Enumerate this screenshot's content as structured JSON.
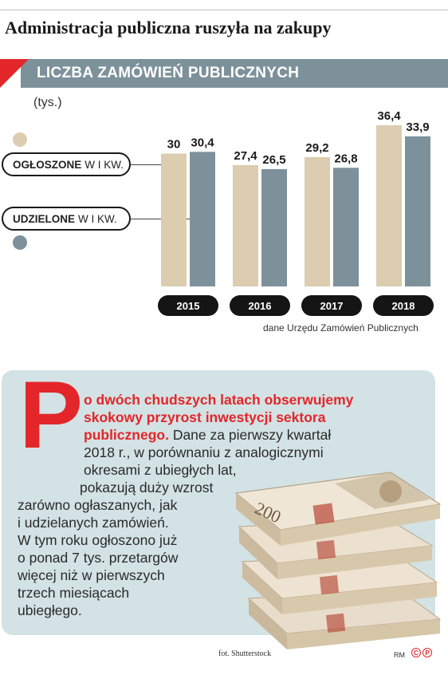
{
  "headline": "Administracja publiczna ruszyła na zakupy",
  "banner": "LICZBA ZAMÓWIEŃ PUBLICZNYCH",
  "units": "(tys.)",
  "legend": {
    "announced_bold": "OGŁOSZONE",
    "announced_rest": "W I KW.",
    "awarded_bold": "UDZIELONE",
    "awarded_rest": "W I KW."
  },
  "colors": {
    "announced": "#dcccb0",
    "awarded": "#7d919b",
    "accent": "#e3262a",
    "card": "#d3e2e4"
  },
  "chart_data": {
    "type": "bar",
    "categories": [
      "2015",
      "2016",
      "2017",
      "2018"
    ],
    "series": [
      {
        "name": "OGŁOSZONE W I KW.",
        "values": [
          30,
          27.4,
          29.2,
          36.4
        ],
        "labels": [
          "30",
          "27,4",
          "29,2",
          "36,4"
        ]
      },
      {
        "name": "UDZIELONE W I KW.",
        "values": [
          30.4,
          26.5,
          26.8,
          33.9
        ],
        "labels": [
          "30,4",
          "26,5",
          "26,8",
          "33,9"
        ]
      }
    ],
    "ylabel": "(tys.)",
    "ylim": [
      0,
      36.4
    ],
    "grid": false
  },
  "source": "dane Urzędu Zamówień Publicznych",
  "article": {
    "dropcap": "P",
    "lead": "o dwóch chudszych latach obserwujemy skokowy przyrost inwestycji sektora publicznego.",
    "lines": [
      "o dwóch chudszych latach obserwujemy",
      "skokowy przyrost inwestycji sektora",
      "publicznego.",
      " Dane za pierwszy kwartał",
      "2018 r., w porównaniu z analogicznymi",
      "okresami z ubiegłych lat,",
      "pokazują duży wzrost",
      "zarówno ogłaszanych, jak",
      "i udzielanych zamówień.",
      "W tym roku ogłoszono już",
      "o ponad 7 tys. przetargów",
      "więcej niż w pierwszych",
      "trzech miesiącach",
      "ubiegłego."
    ]
  },
  "photo_credit": "fot. Shutterstock",
  "footer_mark": "RM",
  "footer_icons": [
    "C",
    "P"
  ],
  "banknote_denomination": "200"
}
